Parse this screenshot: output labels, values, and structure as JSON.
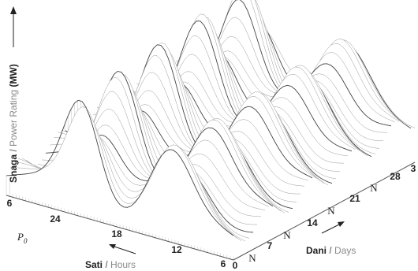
{
  "chart_data": {
    "type": "surface",
    "y_label": {
      "name": "Snaga",
      "sep": " / ",
      "translation": "Power Rating",
      "unit": " (MW)"
    },
    "hours_label": {
      "name": "Sati",
      "sep": " / ",
      "translation": "Hours"
    },
    "days_label": {
      "name": "Dani",
      "sep": " / ",
      "translation": "Days"
    },
    "p0": "P",
    "p0_sub": "0",
    "hours_ticks": [
      6,
      24,
      18,
      12,
      6
    ],
    "days_ticks": [
      "0",
      "N",
      "7",
      "N",
      "14",
      "N",
      "21",
      "N",
      "28",
      "3"
    ]
  }
}
